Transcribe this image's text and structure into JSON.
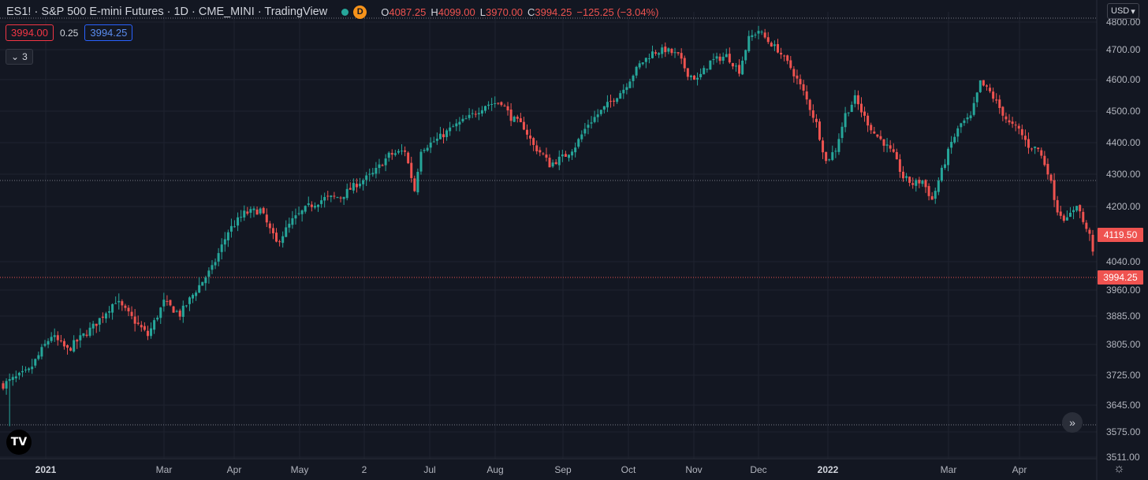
{
  "legend": {
    "title": "ES1! · S&P 500 E-mini Futures · 1D · CME_MINI · TradingView",
    "badge": "D",
    "open_key": "O",
    "open": "4087.25",
    "high_key": "H",
    "high": "4099.00",
    "low_key": "L",
    "low": "3970.00",
    "close_key": "C",
    "close": "3994.25",
    "change": "−125.25 (−3.04%)"
  },
  "trade": {
    "sell": "3994.00",
    "spread": "0.25",
    "buy": "3994.25"
  },
  "indicators_toggle": "3",
  "currency": "USD",
  "logo": "TV",
  "colors": {
    "background": "#131722",
    "up": "#26a69a",
    "down": "#ef5350",
    "grid": "#1f2330",
    "text": "#b2b5be",
    "price_line": "#ef5350"
  },
  "chart_data": {
    "type": "candlestick",
    "symbol": "ES1!",
    "y_ticks": [
      "4800.00",
      "4700.00",
      "4600.00",
      "4500.00",
      "4400.00",
      "4300.00",
      "4200.00",
      "4040.00",
      "3960.00",
      "3885.00",
      "3805.00",
      "3725.00",
      "3645.00",
      "3575.00",
      "3511.00"
    ],
    "x_ticks": [
      "2021",
      "Mar",
      "Apr",
      "May",
      "2",
      "Jul",
      "Aug",
      "Sep",
      "Oct",
      "Nov",
      "Dec",
      "2022",
      "Mar",
      "Apr"
    ],
    "price_labels": [
      {
        "value": "4119.50",
        "color": "#ef5350"
      },
      {
        "value": "3994.25",
        "color": "#ef5350"
      }
    ],
    "ylim": [
      3500,
      4820
    ],
    "anchors": [
      [
        0,
        3700
      ],
      [
        8,
        3735
      ],
      [
        15,
        3830
      ],
      [
        20,
        3790
      ],
      [
        28,
        3855
      ],
      [
        35,
        3930
      ],
      [
        40,
        3880
      ],
      [
        45,
        3830
      ],
      [
        50,
        3925
      ],
      [
        55,
        3890
      ],
      [
        60,
        3960
      ],
      [
        65,
        4020
      ],
      [
        70,
        4130
      ],
      [
        75,
        4180
      ],
      [
        80,
        4190
      ],
      [
        85,
        4095
      ],
      [
        90,
        4160
      ],
      [
        95,
        4200
      ],
      [
        100,
        4225
      ],
      [
        105,
        4230
      ],
      [
        110,
        4270
      ],
      [
        115,
        4300
      ],
      [
        120,
        4360
      ],
      [
        125,
        4375
      ],
      [
        128,
        4250
      ],
      [
        130,
        4380
      ],
      [
        135,
        4410
      ],
      [
        140,
        4450
      ],
      [
        145,
        4480
      ],
      [
        150,
        4520
      ],
      [
        155,
        4530
      ],
      [
        158,
        4480
      ],
      [
        162,
        4450
      ],
      [
        165,
        4390
      ],
      [
        168,
        4360
      ],
      [
        170,
        4330
      ],
      [
        175,
        4360
      ],
      [
        178,
        4390
      ],
      [
        182,
        4460
      ],
      [
        188,
        4520
      ],
      [
        193,
        4570
      ],
      [
        198,
        4650
      ],
      [
        202,
        4690
      ],
      [
        206,
        4700
      ],
      [
        210,
        4680
      ],
      [
        213,
        4620
      ],
      [
        216,
        4600
      ],
      [
        220,
        4660
      ],
      [
        225,
        4680
      ],
      [
        229,
        4630
      ],
      [
        232,
        4740
      ],
      [
        235,
        4770
      ],
      [
        238,
        4730
      ],
      [
        241,
        4700
      ],
      [
        245,
        4640
      ],
      [
        249,
        4560
      ],
      [
        253,
        4460
      ],
      [
        256,
        4340
      ],
      [
        259,
        4380
      ],
      [
        262,
        4490
      ],
      [
        265,
        4540
      ],
      [
        268,
        4480
      ],
      [
        271,
        4430
      ],
      [
        274,
        4400
      ],
      [
        277,
        4360
      ],
      [
        280,
        4290
      ],
      [
        283,
        4270
      ],
      [
        286,
        4280
      ],
      [
        289,
        4220
      ],
      [
        292,
        4310
      ],
      [
        295,
        4400
      ],
      [
        298,
        4460
      ],
      [
        301,
        4480
      ],
      [
        304,
        4590
      ],
      [
        307,
        4560
      ],
      [
        310,
        4510
      ],
      [
        313,
        4460
      ],
      [
        316,
        4440
      ],
      [
        319,
        4390
      ],
      [
        322,
        4380
      ],
      [
        325,
        4310
      ],
      [
        328,
        4190
      ],
      [
        331,
        4160
      ],
      [
        334,
        4210
      ],
      [
        337,
        4130
      ]
    ],
    "n_candles": 340,
    "last_close": 4119.5,
    "min_low": 3590
  }
}
